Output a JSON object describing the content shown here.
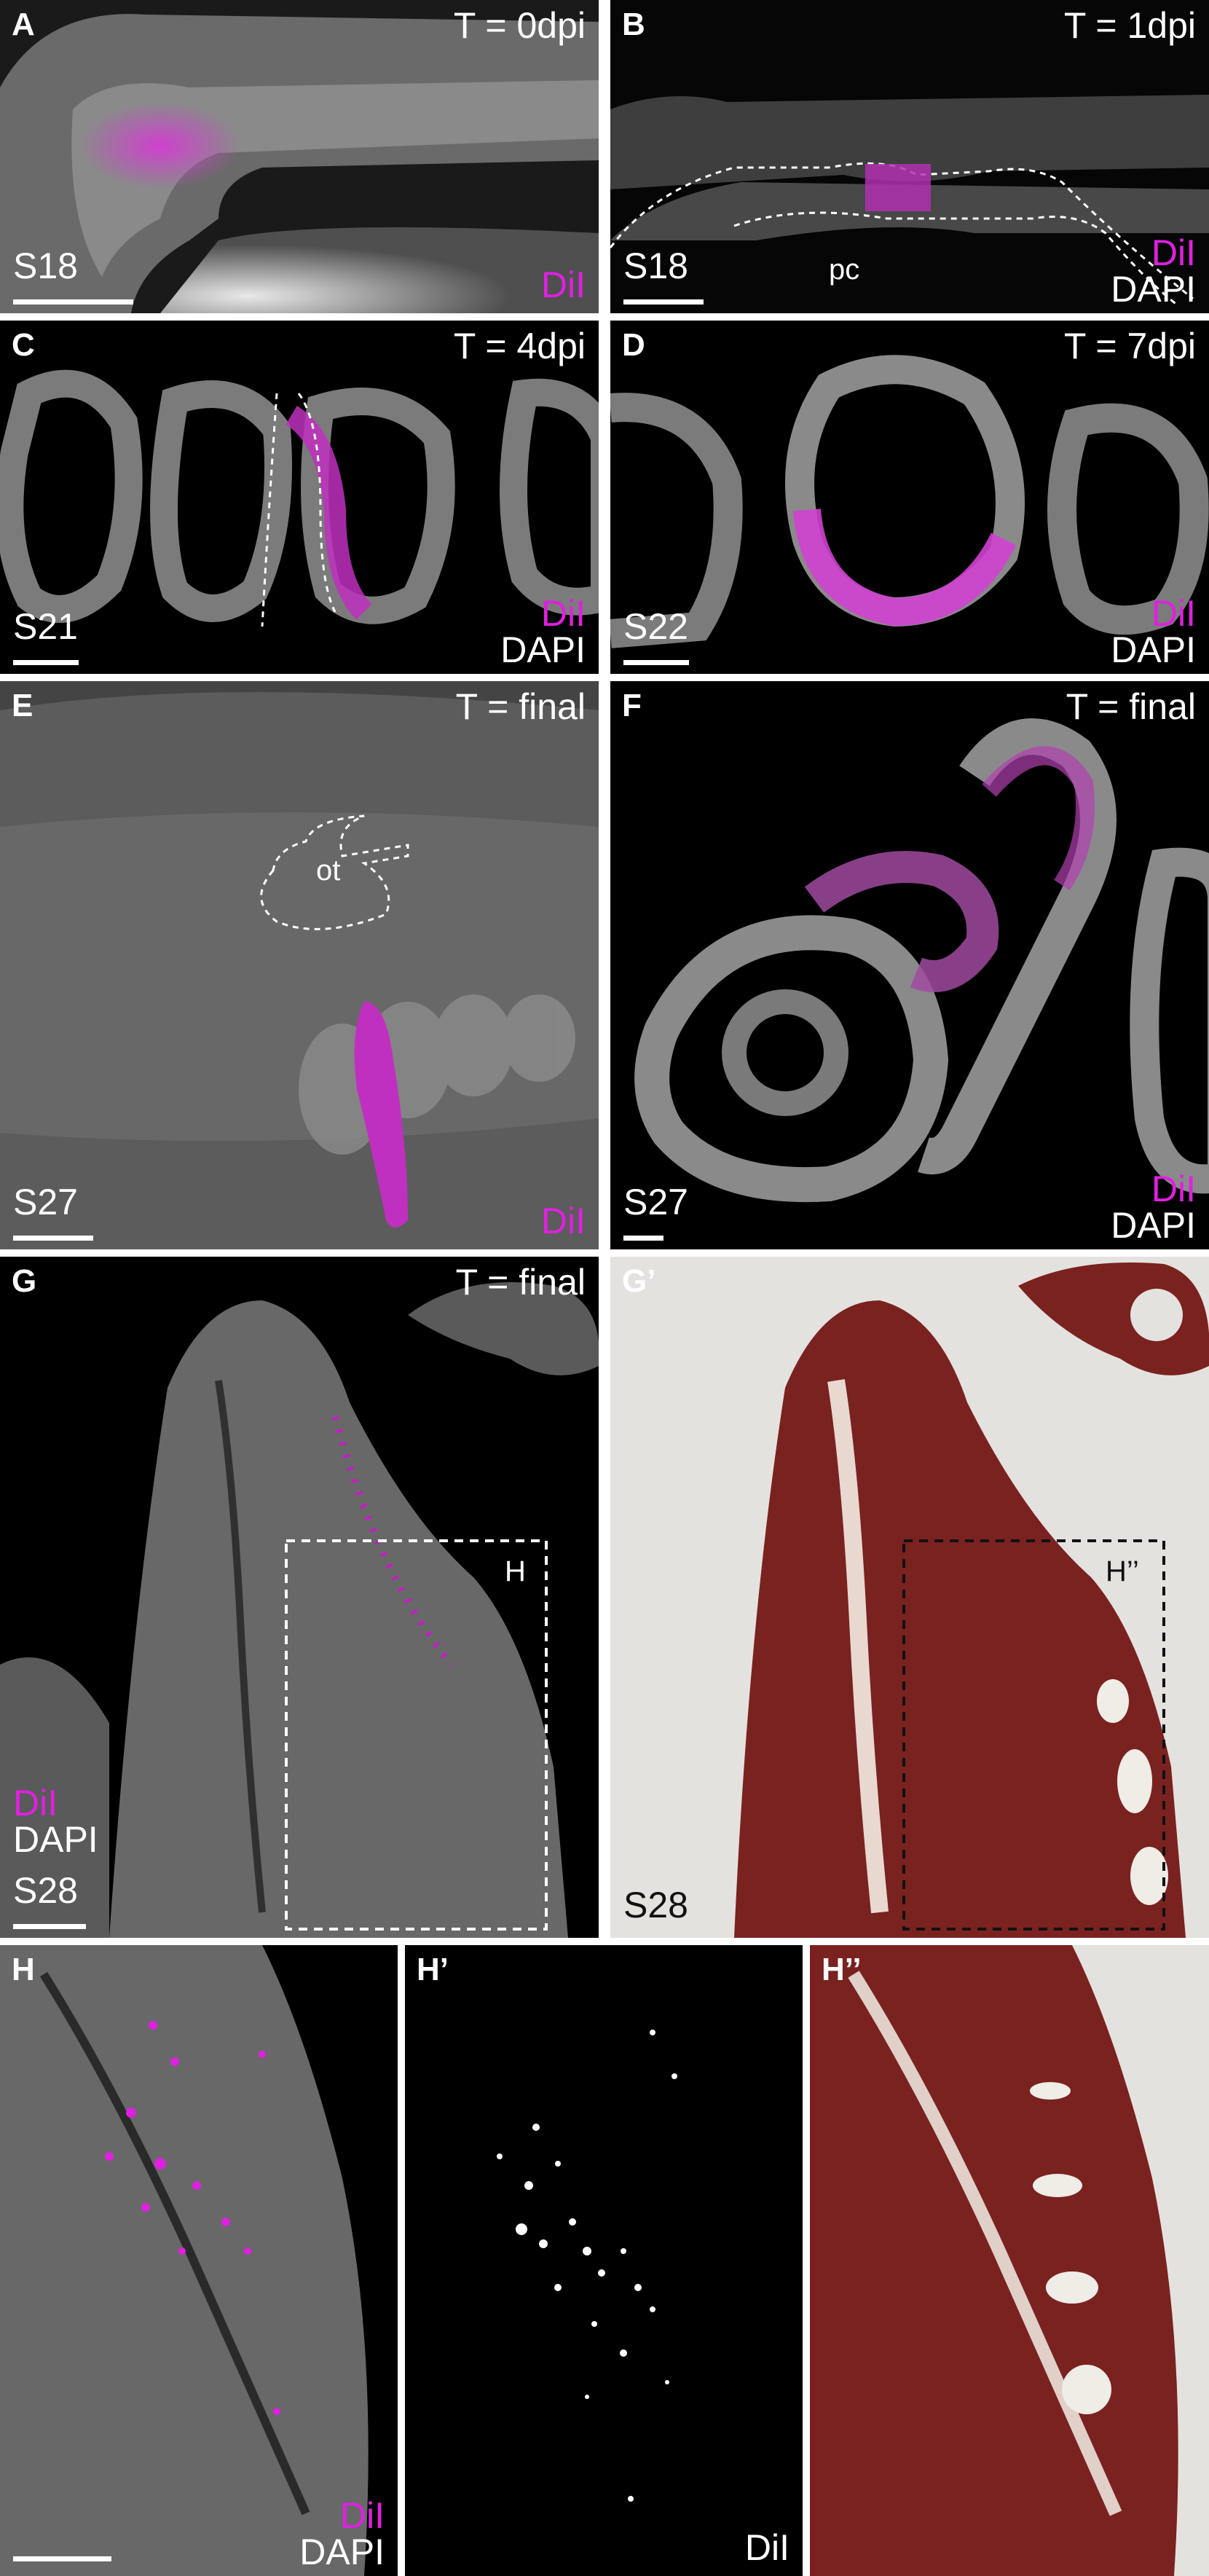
{
  "panels": {
    "A": {
      "label": "A",
      "time": "T = 0dpi",
      "stage": "S18",
      "dil": "DiI"
    },
    "B": {
      "label": "B",
      "time": "T = 1dpi",
      "stage": "S18",
      "dil": "DiI",
      "dapi": "DAPI",
      "tag": "pc"
    },
    "C": {
      "label": "C",
      "time": "T = 4dpi",
      "stage": "S21",
      "dil": "DiI",
      "dapi": "DAPI"
    },
    "D": {
      "label": "D",
      "time": "T = 7dpi",
      "stage": "S22",
      "dil": "DiI",
      "dapi": "DAPI"
    },
    "E": {
      "label": "E",
      "time": "T = final",
      "stage": "S27",
      "dil": "DiI",
      "tag": "ot"
    },
    "F": {
      "label": "F",
      "time": "T = final",
      "stage": "S27",
      "dil": "DiI",
      "dapi": "DAPI"
    },
    "G": {
      "label": "G",
      "time": "T = final",
      "stage": "S28",
      "dil": "DiI",
      "dapi": "DAPI",
      "box": "H"
    },
    "G2": {
      "label": "G’",
      "stage": "S28",
      "box": "H’’"
    },
    "H": {
      "label": "H",
      "dil": "DiI",
      "dapi": "DAPI"
    },
    "H1": {
      "label": "H’",
      "dil": "DiI"
    },
    "H2": {
      "label": "H’’"
    }
  },
  "colors": {
    "dil": "#e020e0",
    "dapi": "#ffffff",
    "histology": "#7a1e1e"
  }
}
